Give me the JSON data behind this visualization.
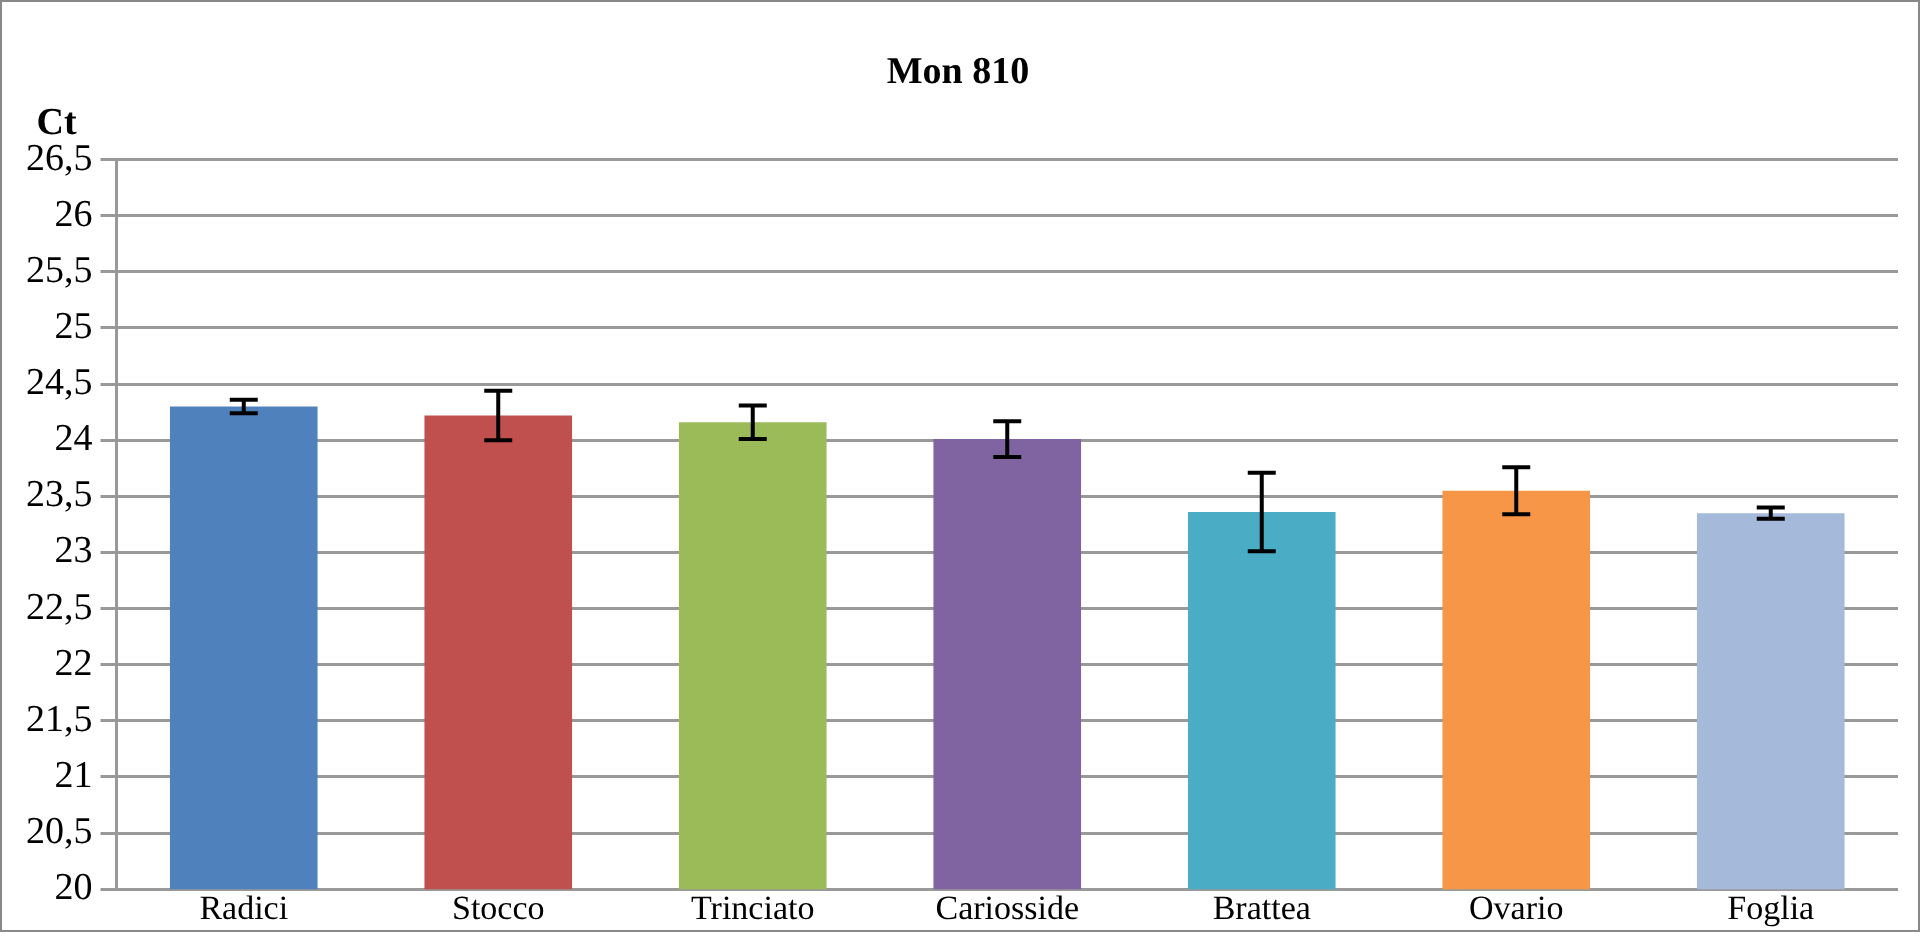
{
  "chart_data": {
    "type": "bar",
    "title": "Mon 810",
    "ylabel": "Ct",
    "categories": [
      "Radici",
      "Stocco",
      "Trinciato",
      "Cariosside",
      "Brattea",
      "Ovario",
      "Foglia"
    ],
    "values": [
      24.3,
      24.22,
      24.16,
      24.01,
      23.36,
      23.55,
      23.35
    ],
    "errors": [
      0.06,
      0.22,
      0.15,
      0.16,
      0.35,
      0.21,
      0.05
    ],
    "colors": [
      "#4f81bd",
      "#c0504d",
      "#9bbb59",
      "#8064a2",
      "#4bacc6",
      "#f79646",
      "#a5b9db"
    ],
    "ylim": [
      20,
      26.5
    ],
    "yticks": [
      20,
      {
        "value": 20.5,
        "label": "20,5"
      },
      21,
      {
        "value": 21.5,
        "label": "21,5"
      },
      22,
      {
        "value": 22.5,
        "label": "22,5"
      },
      23,
      {
        "value": 23.5,
        "label": "23,5"
      },
      24,
      {
        "value": 24.5,
        "label": "24,5"
      },
      25,
      {
        "value": 25.5,
        "label": "25,5"
      },
      26,
      {
        "value": 26.5,
        "label": "26,5"
      }
    ],
    "grid": "y",
    "legend": false
  }
}
